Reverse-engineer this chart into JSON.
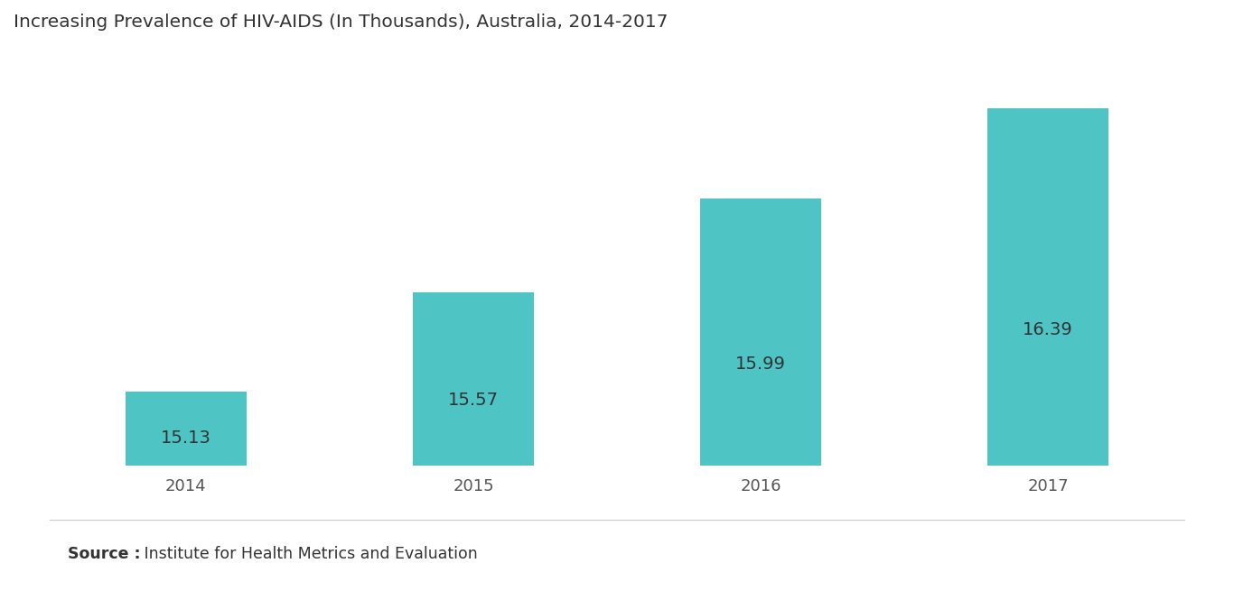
{
  "title": "Increasing Prevalence of HIV-AIDS (In Thousands), Australia, 2014-2017",
  "categories": [
    "2014",
    "2015",
    "2016",
    "2017"
  ],
  "values": [
    15.13,
    15.57,
    15.99,
    16.39
  ],
  "bar_color": "#4EC4C4",
  "label_color": "#333333",
  "tick_color": "#555555",
  "label_fontsize": 14,
  "title_fontsize": 14.5,
  "xlabel_fontsize": 13,
  "background_color": "#ffffff",
  "ylim_min": 14.8,
  "ylim_max": 16.65,
  "bar_width": 0.42,
  "source_bold": "Source :",
  "source_text": " Institute for Health Metrics and Evaluation",
  "source_fontsize": 12.5
}
